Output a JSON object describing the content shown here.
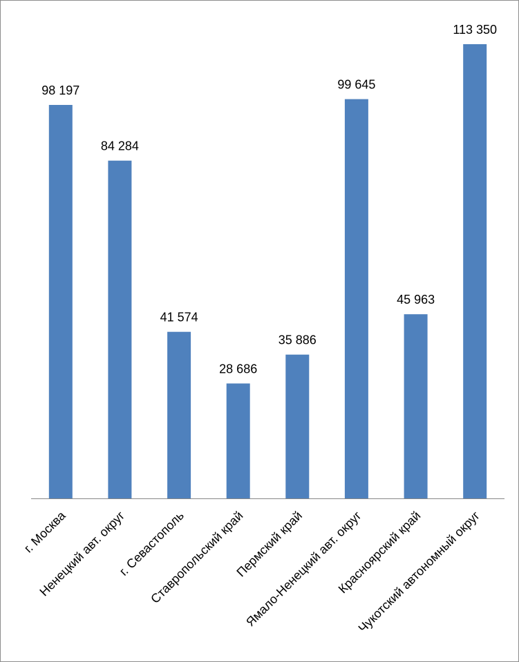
{
  "chart_data": {
    "type": "bar",
    "categories": [
      "г. Москва",
      "Ненецкий авт. округ",
      "г. Севастополь",
      "Ставропольский край",
      "Пермский край",
      "Ямало-Ненецкий авт. округ",
      "Красноярский край",
      "Чукотский автономный округ"
    ],
    "values": [
      98197,
      84284,
      41574,
      28686,
      35886,
      99645,
      45963,
      113350
    ],
    "data_labels": [
      "98 197",
      "84 284",
      "41 574",
      "28 686",
      "35 886",
      "99 645",
      "45 963",
      "113 350"
    ],
    "ylim": [
      0,
      113350
    ],
    "grid": false,
    "legend": "none",
    "bar_color": "#4F81BD",
    "axis_color": "#868686"
  }
}
